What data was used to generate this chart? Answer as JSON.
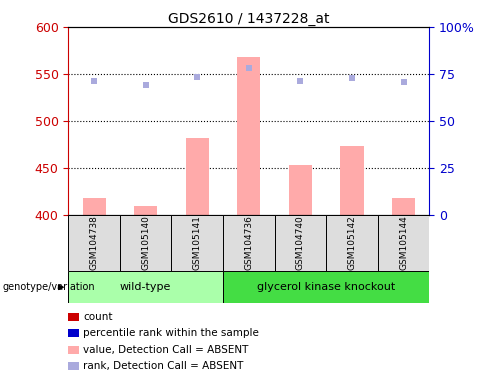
{
  "title": "GDS2610 / 1437228_at",
  "samples": [
    "GSM104738",
    "GSM105140",
    "GSM105141",
    "GSM104736",
    "GSM104740",
    "GSM105142",
    "GSM105144"
  ],
  "groups": [
    "wild-type",
    "wild-type",
    "wild-type",
    "glycerol kinase knockout",
    "glycerol kinase knockout",
    "glycerol kinase knockout",
    "glycerol kinase knockout"
  ],
  "bar_values": [
    418,
    410,
    482,
    568,
    453,
    473,
    418
  ],
  "dot_values": [
    543,
    538,
    547,
    556,
    542,
    546,
    541
  ],
  "ylim_left": [
    400,
    600
  ],
  "ylim_right": [
    0,
    100
  ],
  "yticks_left": [
    400,
    450,
    500,
    550,
    600
  ],
  "yticks_right": [
    0,
    25,
    50,
    75,
    100
  ],
  "bar_color": "#ffaaaa",
  "dot_color": "#aaaadd",
  "bar_base": 400,
  "wt_color": "#aaffaa",
  "gk_color": "#44dd44",
  "sample_box_color": "#dddddd",
  "left_axis_color": "#cc0000",
  "right_axis_color": "#0000cc",
  "hline_vals": [
    450,
    500,
    550
  ],
  "legend_items": [
    {
      "label": "count",
      "color": "#cc0000"
    },
    {
      "label": "percentile rank within the sample",
      "color": "#0000cc"
    },
    {
      "label": "value, Detection Call = ABSENT",
      "color": "#ffaaaa"
    },
    {
      "label": "rank, Detection Call = ABSENT",
      "color": "#aaaadd"
    }
  ]
}
